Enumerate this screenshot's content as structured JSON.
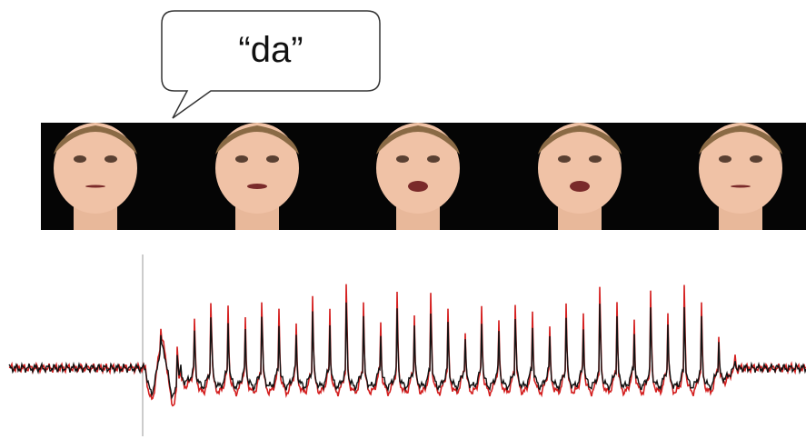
{
  "bubble": {
    "text": "“da”"
  }
}
